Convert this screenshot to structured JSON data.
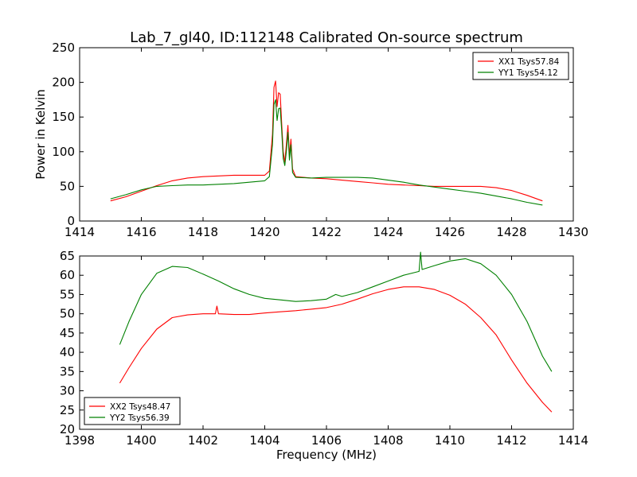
{
  "chart_data": [
    {
      "type": "line",
      "title": "Lab_7_gl40, ID:112148 Calibrated On-source spectrum",
      "xlabel": "",
      "ylabel": "Power in Kelvin",
      "xlim": [
        1414,
        1430
      ],
      "ylim": [
        0,
        250
      ],
      "xticks": [
        "1414",
        "1416",
        "1418",
        "1420",
        "1422",
        "1424",
        "1426",
        "1428",
        "1430"
      ],
      "yticks": [
        "0",
        "50",
        "100",
        "150",
        "200",
        "250"
      ],
      "grid": false,
      "legend_position": "top-right",
      "series": [
        {
          "name": "XX1 Tsys57.84",
          "color": "#ff0000",
          "x": [
            1415.0,
            1415.5,
            1416.0,
            1416.5,
            1417.0,
            1417.5,
            1418.0,
            1418.5,
            1419.0,
            1419.5,
            1420.0,
            1420.15,
            1420.25,
            1420.3,
            1420.35,
            1420.4,
            1420.45,
            1420.5,
            1420.55,
            1420.6,
            1420.65,
            1420.7,
            1420.75,
            1420.8,
            1420.85,
            1420.9,
            1421.0,
            1421.5,
            1422.0,
            1422.5,
            1423.0,
            1423.5,
            1424.0,
            1424.5,
            1425.0,
            1425.5,
            1426.0,
            1426.5,
            1427.0,
            1427.5,
            1428.0,
            1428.5,
            1429.0
          ],
          "values": [
            29,
            35,
            43,
            51,
            58,
            62,
            64,
            65,
            66,
            66,
            66,
            72,
            125,
            193,
            202,
            165,
            185,
            183,
            140,
            100,
            85,
            110,
            138,
            95,
            118,
            75,
            64,
            62,
            61,
            59,
            57,
            55,
            53,
            52,
            51,
            50,
            50,
            50,
            50,
            48,
            44,
            37,
            29
          ]
        },
        {
          "name": "YY1 Tsys54.12",
          "color": "#008000",
          "x": [
            1415.0,
            1415.5,
            1416.0,
            1416.5,
            1417.0,
            1417.5,
            1418.0,
            1418.5,
            1419.0,
            1419.5,
            1420.0,
            1420.15,
            1420.25,
            1420.3,
            1420.35,
            1420.4,
            1420.45,
            1420.5,
            1420.55,
            1420.6,
            1420.65,
            1420.7,
            1420.75,
            1420.8,
            1420.85,
            1420.9,
            1421.0,
            1421.5,
            1422.0,
            1422.5,
            1423.0,
            1423.5,
            1424.0,
            1424.5,
            1425.0,
            1425.5,
            1426.0,
            1426.5,
            1427.0,
            1427.5,
            1428.0,
            1428.5,
            1429.0
          ],
          "values": [
            32,
            38,
            45,
            50,
            51,
            52,
            52,
            53,
            54,
            56,
            58,
            64,
            110,
            168,
            175,
            145,
            162,
            163,
            130,
            90,
            80,
            100,
            128,
            88,
            110,
            70,
            63,
            62,
            63,
            63,
            63,
            62,
            59,
            56,
            52,
            49,
            46,
            43,
            40,
            36,
            32,
            27,
            23
          ]
        }
      ]
    },
    {
      "type": "line",
      "title": "",
      "xlabel": "Frequency (MHz)",
      "ylabel": "",
      "xlim": [
        1398,
        1414
      ],
      "ylim": [
        20,
        65
      ],
      "xticks": [
        "1398",
        "1400",
        "1402",
        "1404",
        "1406",
        "1408",
        "1410",
        "1412",
        "1414"
      ],
      "yticks": [
        "20",
        "25",
        "30",
        "35",
        "40",
        "45",
        "50",
        "55",
        "60",
        "65"
      ],
      "grid": false,
      "legend_position": "bottom-left",
      "series": [
        {
          "name": "XX2 Tsys48.47",
          "color": "#ff0000",
          "x": [
            1399.3,
            1399.6,
            1400.0,
            1400.5,
            1401.0,
            1401.5,
            1402.0,
            1402.4,
            1402.45,
            1402.5,
            1403.0,
            1403.5,
            1404.0,
            1404.5,
            1405.0,
            1405.5,
            1406.0,
            1406.5,
            1407.0,
            1407.5,
            1408.0,
            1408.5,
            1409.0,
            1409.5,
            1410.0,
            1410.5,
            1411.0,
            1411.5,
            1412.0,
            1412.5,
            1413.0,
            1413.3
          ],
          "values": [
            32,
            36,
            41,
            46,
            49,
            49.7,
            50,
            50,
            52,
            50,
            49.8,
            49.8,
            50.2,
            50.5,
            50.8,
            51.2,
            51.6,
            52.5,
            53.8,
            55.2,
            56.3,
            57,
            57,
            56.3,
            54.8,
            52.5,
            49,
            44.5,
            38,
            32,
            27,
            24.5
          ]
        },
        {
          "name": "YY2 Tsys56.39",
          "color": "#008000",
          "x": [
            1399.3,
            1399.6,
            1400.0,
            1400.5,
            1401.0,
            1401.5,
            1402.0,
            1402.5,
            1403.0,
            1403.5,
            1404.0,
            1404.5,
            1405.0,
            1405.5,
            1406.0,
            1406.3,
            1406.5,
            1407.0,
            1407.5,
            1408.0,
            1408.5,
            1409.0,
            1409.05,
            1409.1,
            1409.5,
            1410.0,
            1410.5,
            1411.0,
            1411.5,
            1412.0,
            1412.5,
            1413.0,
            1413.3
          ],
          "values": [
            42,
            48,
            55,
            60.5,
            62.3,
            62,
            60.3,
            58.5,
            56.5,
            55,
            54,
            53.6,
            53.2,
            53.4,
            53.8,
            55,
            54.5,
            55.5,
            57,
            58.5,
            60,
            61,
            66,
            61.5,
            62.5,
            63.7,
            64.3,
            63,
            60,
            55,
            48,
            39,
            35
          ]
        }
      ]
    }
  ]
}
